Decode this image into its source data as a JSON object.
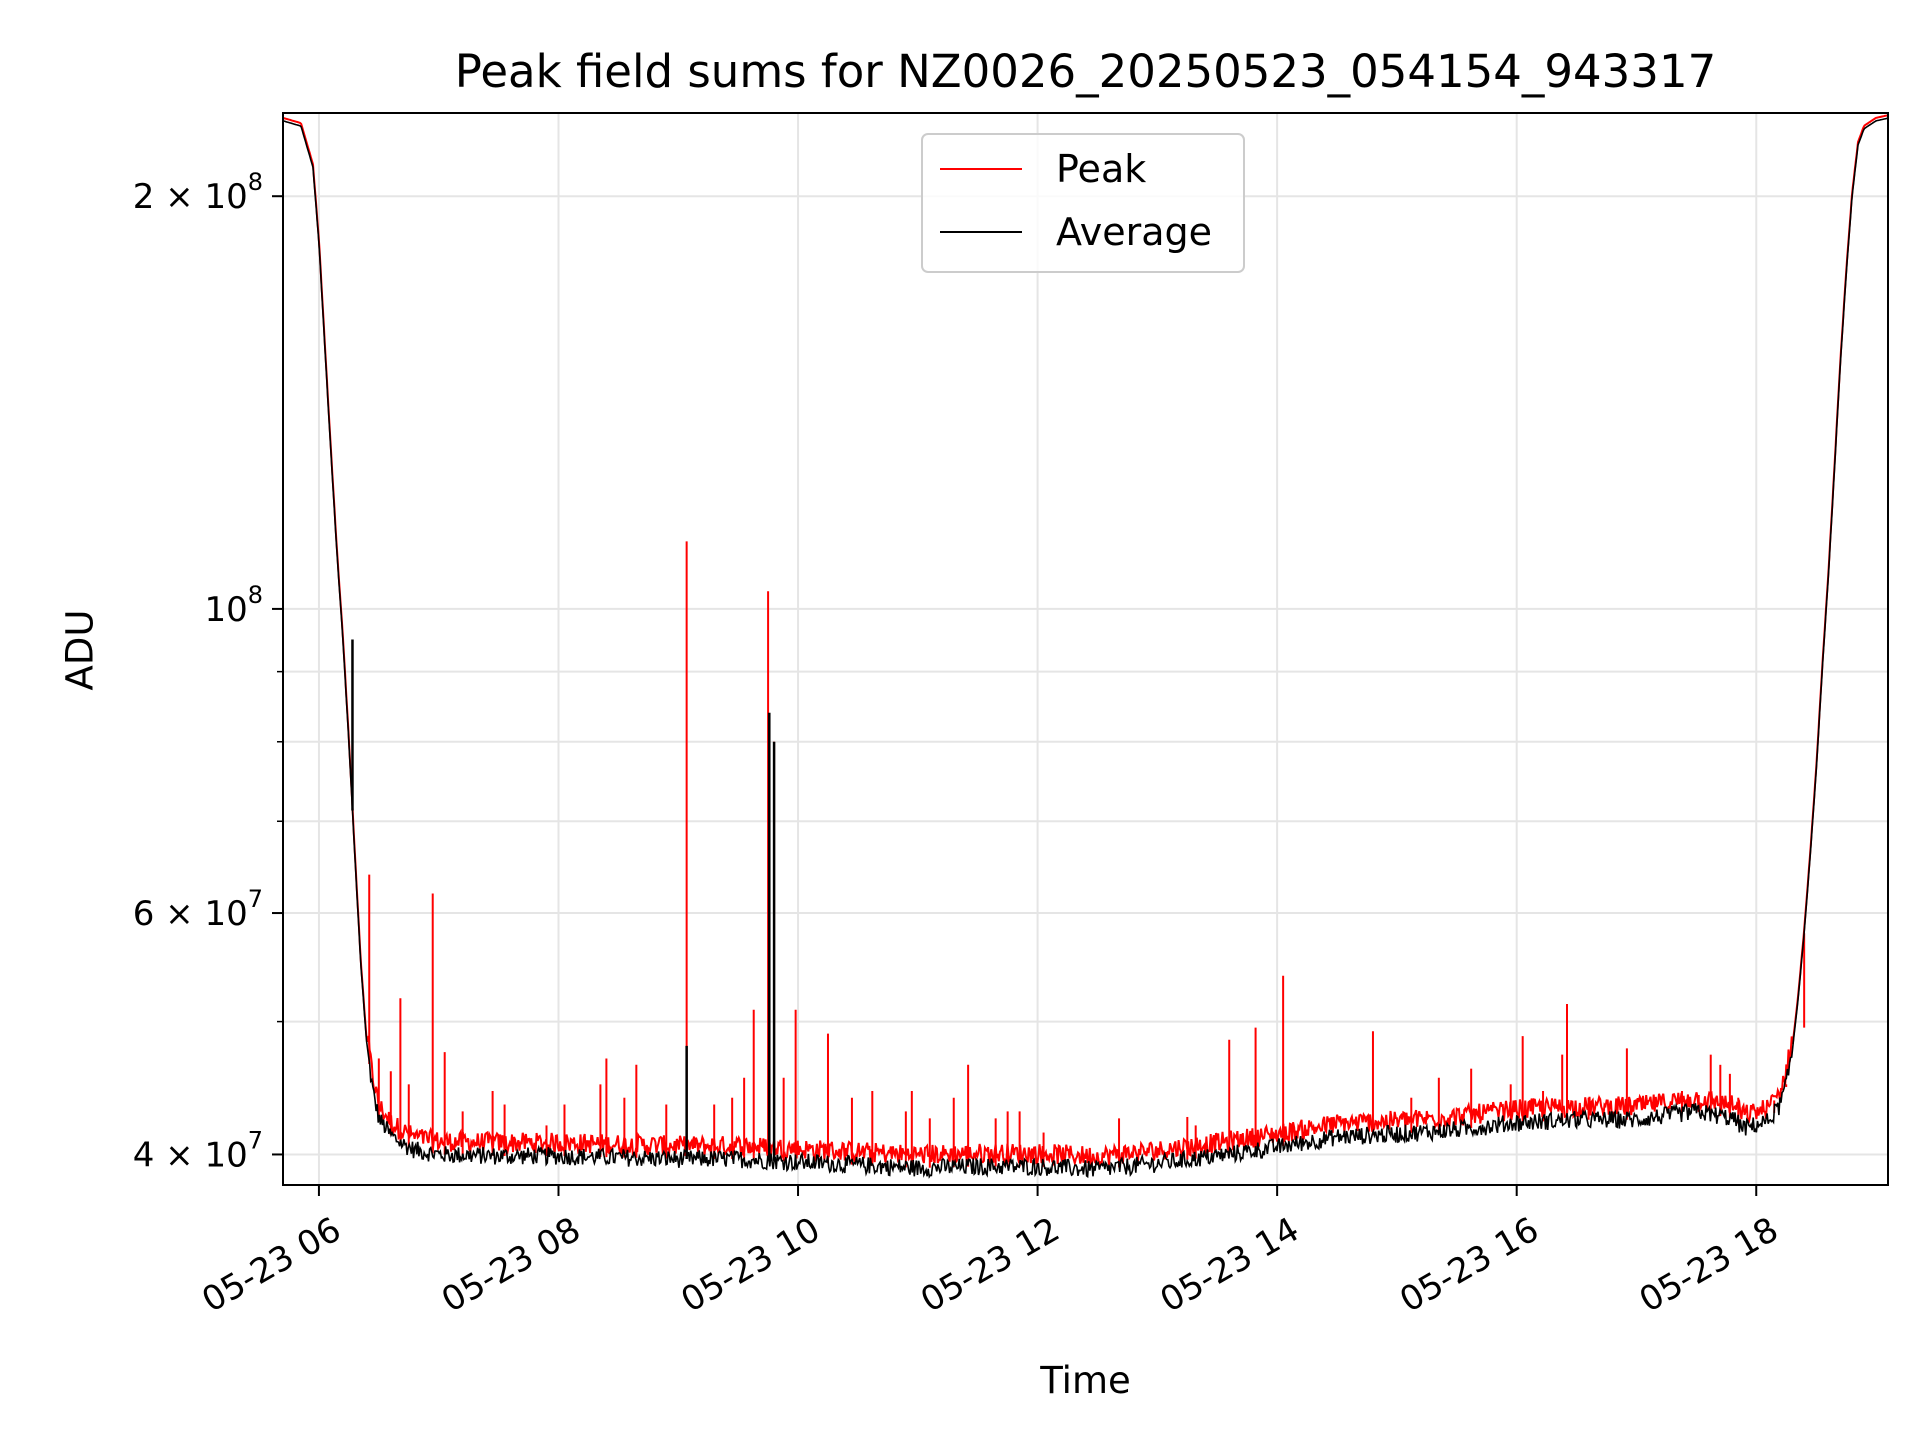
{
  "chart_data": {
    "type": "line",
    "title": "Peak field sums for NZ0026_20250523_054154_943317",
    "xlabel": "Time",
    "ylabel": "ADU",
    "yscale": "log",
    "grid": true,
    "legend_position": "upper-center",
    "x_unit": "hours on 2025-05-23",
    "xlim": [
      5.7,
      19.1
    ],
    "ylim": [
      38000000,
      230000000
    ],
    "x_ticks": [
      6,
      8,
      10,
      12,
      14,
      16,
      18
    ],
    "x_tick_labels": [
      "05-23 06",
      "05-23 08",
      "05-23 10",
      "05-23 12",
      "05-23 14",
      "05-23 16",
      "05-23 18"
    ],
    "y_ticks": [
      {
        "value": 40000000,
        "mantissa": "4",
        "exp": "7"
      },
      {
        "value": 60000000,
        "mantissa": "6",
        "exp": "7"
      },
      {
        "value": 100000000,
        "mantissa": "",
        "exp": "8"
      },
      {
        "value": 200000000,
        "mantissa": "2",
        "exp": "8"
      }
    ],
    "y_minor_ticks": [
      50000000,
      70000000,
      80000000,
      90000000
    ],
    "series": [
      {
        "name": "Average",
        "color": "#000000",
        "x": [
          5.7,
          5.85,
          5.95,
          6.0,
          6.05,
          6.1,
          6.15,
          6.2,
          6.25,
          6.3,
          6.35,
          6.4,
          6.45,
          6.5,
          6.6,
          6.7,
          6.8,
          7.0,
          7.5,
          8.0,
          8.5,
          9.0,
          9.5,
          10.0,
          10.5,
          11.0,
          11.5,
          12.0,
          12.5,
          13.0,
          13.5,
          14.0,
          14.5,
          15.0,
          15.5,
          16.0,
          16.5,
          17.0,
          17.5,
          17.8,
          17.9,
          18.1,
          18.2,
          18.25,
          18.3,
          18.35,
          18.4,
          18.45,
          18.5,
          18.55,
          18.6,
          18.65,
          18.7,
          18.75,
          18.8,
          18.85,
          18.9,
          19.0,
          19.1
        ],
        "y": [
          227000000,
          225000000,
          210000000,
          185000000,
          155000000,
          130000000,
          110000000,
          95000000,
          80000000,
          66000000,
          55000000,
          48000000,
          44500000,
          42500000,
          41300000,
          40700000,
          40300000,
          40000000,
          39900000,
          39900000,
          39800000,
          39700000,
          39700000,
          39500000,
          39300000,
          39100000,
          39200000,
          39200000,
          39000000,
          39400000,
          39900000,
          40500000,
          41200000,
          41400000,
          41700000,
          42200000,
          42400000,
          42400000,
          43000000,
          42500000,
          41800000,
          42300000,
          43500000,
          45000000,
          47500000,
          52000000,
          58000000,
          66000000,
          76000000,
          90000000,
          105000000,
          125000000,
          150000000,
          175000000,
          200000000,
          218000000,
          224000000,
          227000000,
          228000000
        ]
      },
      {
        "name": "Peak",
        "color": "#ff0000",
        "spikes": [
          {
            "x": 6.42,
            "y": 64000000
          },
          {
            "x": 6.5,
            "y": 47000000
          },
          {
            "x": 6.6,
            "y": 46000000
          },
          {
            "x": 6.68,
            "y": 52000000
          },
          {
            "x": 6.75,
            "y": 45000000
          },
          {
            "x": 6.95,
            "y": 62000000
          },
          {
            "x": 7.05,
            "y": 47500000
          },
          {
            "x": 7.2,
            "y": 43000000
          },
          {
            "x": 7.45,
            "y": 44500000
          },
          {
            "x": 7.55,
            "y": 43500000
          },
          {
            "x": 7.9,
            "y": 42000000
          },
          {
            "x": 8.05,
            "y": 43500000
          },
          {
            "x": 8.35,
            "y": 45000000
          },
          {
            "x": 8.4,
            "y": 47000000
          },
          {
            "x": 8.55,
            "y": 44000000
          },
          {
            "x": 8.65,
            "y": 46500000
          },
          {
            "x": 8.9,
            "y": 43500000
          },
          {
            "x": 9.07,
            "y": 112000000
          },
          {
            "x": 9.3,
            "y": 43500000
          },
          {
            "x": 9.45,
            "y": 44000000
          },
          {
            "x": 9.55,
            "y": 45500000
          },
          {
            "x": 9.63,
            "y": 51000000
          },
          {
            "x": 9.75,
            "y": 103000000
          },
          {
            "x": 9.8,
            "y": 80000000
          },
          {
            "x": 9.88,
            "y": 45500000
          },
          {
            "x": 9.98,
            "y": 51000000
          },
          {
            "x": 10.25,
            "y": 49000000
          },
          {
            "x": 10.45,
            "y": 44000000
          },
          {
            "x": 10.62,
            "y": 44500000
          },
          {
            "x": 10.9,
            "y": 43000000
          },
          {
            "x": 10.95,
            "y": 44500000
          },
          {
            "x": 11.1,
            "y": 42500000
          },
          {
            "x": 11.3,
            "y": 44000000
          },
          {
            "x": 11.42,
            "y": 46500000
          },
          {
            "x": 11.65,
            "y": 42500000
          },
          {
            "x": 11.75,
            "y": 43000000
          },
          {
            "x": 11.85,
            "y": 43000000
          },
          {
            "x": 12.05,
            "y": 41500000
          },
          {
            "x": 12.68,
            "y": 42500000
          },
          {
            "x": 13.25,
            "y": 42600000
          },
          {
            "x": 13.32,
            "y": 42000000
          },
          {
            "x": 13.6,
            "y": 48500000
          },
          {
            "x": 13.82,
            "y": 49500000
          },
          {
            "x": 14.05,
            "y": 54000000
          },
          {
            "x": 14.8,
            "y": 49200000
          },
          {
            "x": 15.12,
            "y": 44000000
          },
          {
            "x": 15.35,
            "y": 45500000
          },
          {
            "x": 15.62,
            "y": 46200000
          },
          {
            "x": 15.95,
            "y": 45000000
          },
          {
            "x": 16.05,
            "y": 48800000
          },
          {
            "x": 16.22,
            "y": 44500000
          },
          {
            "x": 16.38,
            "y": 47300000
          },
          {
            "x": 16.42,
            "y": 51500000
          },
          {
            "x": 16.6,
            "y": 44000000
          },
          {
            "x": 16.92,
            "y": 47800000
          },
          {
            "x": 17.38,
            "y": 44500000
          },
          {
            "x": 17.52,
            "y": 44200000
          },
          {
            "x": 17.62,
            "y": 47300000
          },
          {
            "x": 17.7,
            "y": 46500000
          },
          {
            "x": 17.78,
            "y": 45800000
          },
          {
            "x": 17.85,
            "y": 44000000
          },
          {
            "x": 18.15,
            "y": 43800000
          },
          {
            "x": 18.25,
            "y": 44800000
          },
          {
            "x": 18.4,
            "y": 49500000
          }
        ]
      }
    ]
  }
}
